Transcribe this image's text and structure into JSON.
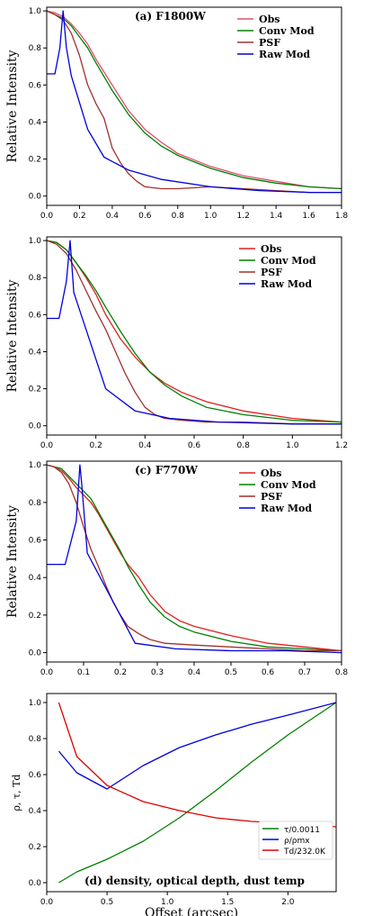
{
  "chart_data": [
    {
      "type": "line",
      "title": "(a) F1800W",
      "xlabel": "",
      "ylabel": "Relative Intensity",
      "xlim": [
        0,
        1.8
      ],
      "ylim": [
        -0.05,
        1.02
      ],
      "xticks": [
        "0.0",
        "0.2",
        "0.4",
        "0.6",
        "0.8",
        "1.0",
        "1.2",
        "1.4",
        "1.6",
        "1.8"
      ],
      "yticks": [
        "0.0",
        "0.2",
        "0.4",
        "0.6",
        "0.8",
        "1.0"
      ],
      "legend_position": "top-right",
      "series": [
        {
          "name": "Obs",
          "color": "#e0506e",
          "x": [
            0,
            0.05,
            0.1,
            0.15,
            0.2,
            0.25,
            0.3,
            0.4,
            0.5,
            0.6,
            0.7,
            0.8,
            1.0,
            1.2,
            1.4,
            1.6,
            1.8
          ],
          "y": [
            1.0,
            0.99,
            0.97,
            0.93,
            0.88,
            0.82,
            0.74,
            0.6,
            0.46,
            0.36,
            0.29,
            0.23,
            0.16,
            0.11,
            0.08,
            0.05,
            0.04
          ]
        },
        {
          "name": "Conv Mod",
          "color": "#008000",
          "x": [
            0,
            0.05,
            0.1,
            0.15,
            0.2,
            0.25,
            0.3,
            0.4,
            0.5,
            0.6,
            0.7,
            0.8,
            1.0,
            1.2,
            1.4,
            1.6,
            1.8
          ],
          "y": [
            1.0,
            0.98,
            0.96,
            0.92,
            0.86,
            0.8,
            0.72,
            0.57,
            0.44,
            0.34,
            0.27,
            0.22,
            0.15,
            0.1,
            0.07,
            0.05,
            0.04
          ]
        },
        {
          "name": "PSF",
          "color": "#a0302c",
          "x": [
            0,
            0.05,
            0.1,
            0.15,
            0.2,
            0.25,
            0.3,
            0.35,
            0.4,
            0.45,
            0.5,
            0.55,
            0.6,
            0.7,
            0.8,
            1.0,
            1.2,
            1.4,
            1.6,
            1.8
          ],
          "y": [
            1.0,
            0.98,
            0.95,
            0.88,
            0.76,
            0.6,
            0.5,
            0.42,
            0.26,
            0.18,
            0.12,
            0.08,
            0.05,
            0.04,
            0.04,
            0.05,
            0.04,
            0.03,
            0.02,
            0.02
          ]
        },
        {
          "name": "Raw Mod",
          "color": "#0000dd",
          "x": [
            0,
            0.05,
            0.08,
            0.1,
            0.12,
            0.15,
            0.25,
            0.35,
            0.5,
            0.7,
            1.0,
            1.3,
            1.6,
            1.8
          ],
          "y": [
            0.66,
            0.66,
            0.8,
            1.0,
            0.8,
            0.65,
            0.36,
            0.21,
            0.14,
            0.09,
            0.05,
            0.03,
            0.02,
            0.02
          ]
        }
      ]
    },
    {
      "type": "line",
      "title": "",
      "xlabel": "",
      "ylabel": "Relative Intensity",
      "xlim": [
        0,
        1.2
      ],
      "ylim": [
        -0.05,
        1.02
      ],
      "xticks": [
        "0.0",
        "0.2",
        "0.4",
        "0.6",
        "0.8",
        "1.0",
        "1.2"
      ],
      "yticks": [
        "0.0",
        "0.2",
        "0.4",
        "0.6",
        "0.8",
        "1.0"
      ],
      "legend_position": "top-right",
      "series": [
        {
          "name": "Obs",
          "color": "#e02020",
          "x": [
            0,
            0.04,
            0.08,
            0.12,
            0.16,
            0.2,
            0.24,
            0.3,
            0.36,
            0.42,
            0.48,
            0.55,
            0.65,
            0.8,
            1.0,
            1.2
          ],
          "y": [
            1.0,
            0.99,
            0.95,
            0.88,
            0.8,
            0.71,
            0.6,
            0.47,
            0.37,
            0.29,
            0.23,
            0.18,
            0.13,
            0.08,
            0.04,
            0.02
          ]
        },
        {
          "name": "Conv Mod",
          "color": "#008000",
          "x": [
            0,
            0.04,
            0.08,
            0.12,
            0.16,
            0.2,
            0.24,
            0.3,
            0.36,
            0.42,
            0.48,
            0.55,
            0.65,
            0.8,
            1.0,
            1.2
          ],
          "y": [
            1.0,
            0.99,
            0.95,
            0.88,
            0.81,
            0.73,
            0.64,
            0.51,
            0.39,
            0.29,
            0.22,
            0.16,
            0.1,
            0.06,
            0.03,
            0.02
          ]
        },
        {
          "name": "PSF",
          "color": "#a0302c",
          "x": [
            0,
            0.04,
            0.08,
            0.12,
            0.16,
            0.2,
            0.24,
            0.28,
            0.32,
            0.36,
            0.4,
            0.44,
            0.48,
            0.55,
            0.65,
            0.8,
            1.0,
            1.2
          ],
          "y": [
            1.0,
            0.98,
            0.93,
            0.84,
            0.73,
            0.62,
            0.52,
            0.4,
            0.28,
            0.18,
            0.1,
            0.06,
            0.04,
            0.03,
            0.02,
            0.02,
            0.01,
            0.01
          ]
        },
        {
          "name": "Raw Mod",
          "color": "#0000dd",
          "x": [
            0,
            0.05,
            0.08,
            0.095,
            0.11,
            0.14,
            0.24,
            0.36,
            0.5,
            0.7,
            1.0,
            1.2
          ],
          "y": [
            0.58,
            0.58,
            0.78,
            1.0,
            0.72,
            0.6,
            0.2,
            0.08,
            0.04,
            0.02,
            0.01,
            0.01
          ]
        }
      ]
    },
    {
      "type": "line",
      "title": "(c) F770W",
      "xlabel": "",
      "ylabel": "Relative Intensity",
      "xlim": [
        0,
        0.8
      ],
      "ylim": [
        -0.05,
        1.02
      ],
      "xticks": [
        "0.0",
        "0.1",
        "0.2",
        "0.3",
        "0.4",
        "0.5",
        "0.6",
        "0.7",
        "0.8"
      ],
      "yticks": [
        "0.0",
        "0.2",
        "0.4",
        "0.6",
        "0.8",
        "1.0"
      ],
      "legend_position": "top-right",
      "series": [
        {
          "name": "Obs",
          "color": "#e02020",
          "x": [
            0,
            0.02,
            0.04,
            0.06,
            0.08,
            0.1,
            0.12,
            0.14,
            0.16,
            0.18,
            0.2,
            0.22,
            0.25,
            0.28,
            0.32,
            0.36,
            0.4,
            0.5,
            0.6,
            0.7,
            0.8
          ],
          "y": [
            1.0,
            0.99,
            0.97,
            0.93,
            0.88,
            0.84,
            0.8,
            0.74,
            0.67,
            0.6,
            0.53,
            0.47,
            0.4,
            0.31,
            0.22,
            0.17,
            0.14,
            0.09,
            0.05,
            0.03,
            0.01
          ]
        },
        {
          "name": "Conv Mod",
          "color": "#008000",
          "x": [
            0,
            0.02,
            0.04,
            0.06,
            0.08,
            0.1,
            0.12,
            0.14,
            0.16,
            0.18,
            0.2,
            0.22,
            0.25,
            0.28,
            0.32,
            0.36,
            0.4,
            0.5,
            0.6,
            0.7,
            0.8
          ],
          "y": [
            1.0,
            0.99,
            0.98,
            0.94,
            0.9,
            0.86,
            0.82,
            0.75,
            0.68,
            0.61,
            0.54,
            0.46,
            0.36,
            0.27,
            0.19,
            0.14,
            0.11,
            0.06,
            0.03,
            0.02,
            0.01
          ]
        },
        {
          "name": "PSF",
          "color": "#a0302c",
          "x": [
            0,
            0.02,
            0.04,
            0.06,
            0.08,
            0.1,
            0.12,
            0.14,
            0.16,
            0.18,
            0.2,
            0.22,
            0.25,
            0.28,
            0.32,
            0.4,
            0.5,
            0.6,
            0.7,
            0.8
          ],
          "y": [
            1.0,
            0.99,
            0.96,
            0.9,
            0.8,
            0.67,
            0.55,
            0.46,
            0.36,
            0.27,
            0.2,
            0.14,
            0.1,
            0.07,
            0.05,
            0.04,
            0.03,
            0.02,
            0.01,
            0.01
          ]
        },
        {
          "name": "Raw Mod",
          "color": "#0000dd",
          "x": [
            0,
            0.05,
            0.08,
            0.09,
            0.095,
            0.11,
            0.24,
            0.35,
            0.5,
            0.65,
            0.8
          ],
          "y": [
            0.47,
            0.47,
            0.7,
            1.0,
            0.9,
            0.53,
            0.05,
            0.02,
            0.01,
            0.01,
            0.0
          ]
        }
      ]
    },
    {
      "type": "line",
      "title": "(d) density, optical depth, dust temp",
      "xlabel": "Offset (arcsec)",
      "ylabel": "ρ, τ, Td",
      "xlim": [
        0,
        2.4
      ],
      "ylim": [
        -0.05,
        1.05
      ],
      "xticks": [
        "0.0",
        "0.5",
        "1.0",
        "1.5",
        "2.0"
      ],
      "yticks": [
        "0.0",
        "0.2",
        "0.4",
        "0.6",
        "0.8",
        "1.0"
      ],
      "legend_position": "bottom-right",
      "series": [
        {
          "name": "τ/0.0011",
          "color": "#008000",
          "x": [
            0.1,
            0.25,
            0.5,
            0.8,
            1.1,
            1.4,
            1.7,
            2.0,
            2.4
          ],
          "y": [
            0.0,
            0.06,
            0.13,
            0.23,
            0.36,
            0.51,
            0.67,
            0.82,
            1.0
          ]
        },
        {
          "name": "ρ/ρmx",
          "color": "#0000dd",
          "x": [
            0.1,
            0.15,
            0.25,
            0.5,
            0.8,
            1.1,
            1.4,
            1.7,
            2.0,
            2.4
          ],
          "y": [
            0.73,
            0.69,
            0.61,
            0.52,
            0.65,
            0.75,
            0.82,
            0.88,
            0.93,
            1.0
          ]
        },
        {
          "name": "Td/232.0K",
          "color": "#e00000",
          "x": [
            0.1,
            0.15,
            0.25,
            0.5,
            0.8,
            1.1,
            1.4,
            1.7,
            2.0,
            2.4
          ],
          "y": [
            1.0,
            0.9,
            0.7,
            0.54,
            0.45,
            0.4,
            0.36,
            0.34,
            0.33,
            0.31
          ]
        }
      ]
    }
  ]
}
